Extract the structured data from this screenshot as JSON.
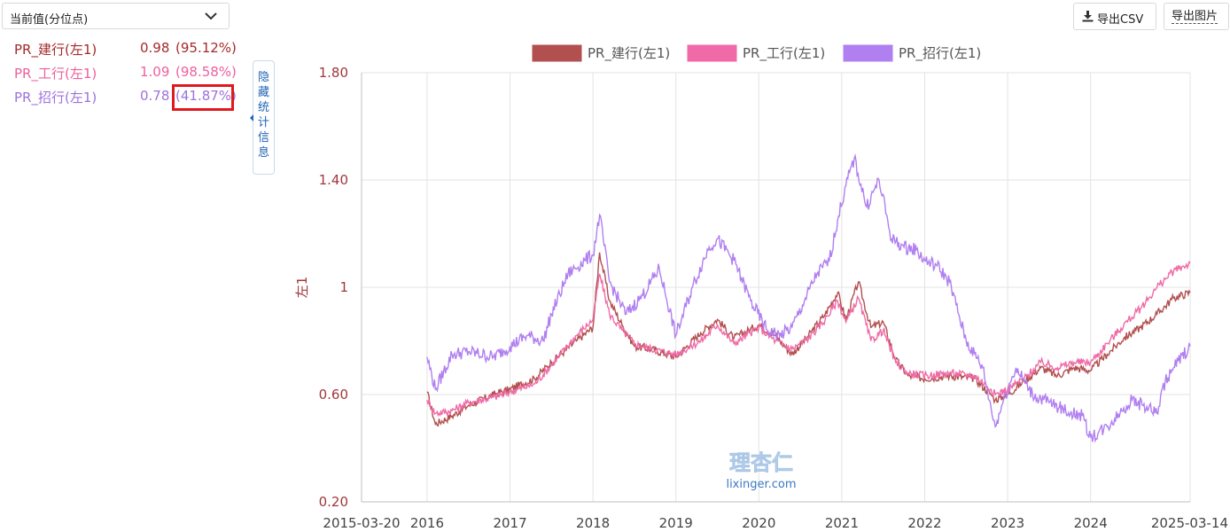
{
  "selector": {
    "label": "当前值(分位点)"
  },
  "stats": [
    {
      "name": "PR_建行(左1)",
      "value": "0.98",
      "pct": "(95.12%)",
      "color": "#a52a2a"
    },
    {
      "name": "PR_工行(左1)",
      "value": "1.09",
      "pct": "(98.58%)",
      "color": "#ee5f9e"
    },
    {
      "name": "PR_招行(左1)",
      "value": "0.78",
      "pct": "(41.87%)",
      "color": "#9d72dc"
    }
  ],
  "toggle": {
    "label": "隐藏统计信息"
  },
  "toolbar": {
    "csv_label": "导出CSV",
    "image_label": "导出图片"
  },
  "watermark": {
    "cn": "理杏仁",
    "url": "lixinger.com"
  },
  "colors": {
    "jianhang": "#b24f4f",
    "gonghang": "#ef6aa6",
    "zhaohang": "#b07ff0",
    "highlight": "#e0191f"
  },
  "chart_data": {
    "type": "line",
    "ylabel": "左1",
    "ylim": [
      0.2,
      1.8
    ],
    "yticks": [
      "1.80",
      "1.40",
      "1",
      "0.60",
      "0.20"
    ],
    "xlim": [
      "2015-03-20",
      "2025-03-14"
    ],
    "xticks": [
      "2015-03-20",
      "2016",
      "2017",
      "2018",
      "2019",
      "2020",
      "2021",
      "2022",
      "2023",
      "2024",
      "2025-03-14"
    ],
    "legend": [
      "PR_建行(左1)",
      "PR_工行(左1)",
      "PR_招行(左1)"
    ],
    "legend_position": "top-center",
    "grid": true,
    "series": [
      {
        "name": "PR_建行(左1)",
        "x": [
          2016.0,
          2016.1,
          2016.3,
          2016.5,
          2016.8,
          2017.0,
          2017.3,
          2017.5,
          2017.8,
          2018.0,
          2018.08,
          2018.2,
          2018.35,
          2018.5,
          2018.7,
          2019.0,
          2019.3,
          2019.5,
          2019.7,
          2020.0,
          2020.2,
          2020.4,
          2020.6,
          2020.8,
          2020.95,
          2021.05,
          2021.2,
          2021.35,
          2021.5,
          2021.65,
          2021.8,
          2022.0,
          2022.3,
          2022.6,
          2022.8,
          2022.85,
          2023.0,
          2023.2,
          2023.4,
          2023.6,
          2023.8,
          2024.0,
          2024.2,
          2024.4,
          2024.6,
          2024.8,
          2025.0,
          2025.2
        ],
        "values": [
          0.61,
          0.49,
          0.52,
          0.56,
          0.6,
          0.62,
          0.66,
          0.72,
          0.8,
          0.85,
          1.13,
          0.95,
          0.86,
          0.78,
          0.77,
          0.74,
          0.83,
          0.88,
          0.81,
          0.86,
          0.82,
          0.75,
          0.82,
          0.9,
          0.98,
          0.88,
          1.02,
          0.85,
          0.87,
          0.73,
          0.67,
          0.66,
          0.67,
          0.66,
          0.6,
          0.58,
          0.6,
          0.65,
          0.7,
          0.67,
          0.7,
          0.69,
          0.75,
          0.81,
          0.85,
          0.9,
          0.96,
          0.98
        ]
      },
      {
        "name": "PR_工行(左1)",
        "x": [
          2016.0,
          2016.1,
          2016.3,
          2016.5,
          2016.8,
          2017.0,
          2017.3,
          2017.5,
          2017.8,
          2018.0,
          2018.08,
          2018.2,
          2018.35,
          2018.5,
          2018.7,
          2019.0,
          2019.3,
          2019.5,
          2019.7,
          2020.0,
          2020.2,
          2020.4,
          2020.6,
          2020.8,
          2020.95,
          2021.05,
          2021.2,
          2021.35,
          2021.5,
          2021.65,
          2021.8,
          2022.0,
          2022.3,
          2022.6,
          2022.8,
          2022.85,
          2023.0,
          2023.2,
          2023.4,
          2023.6,
          2023.8,
          2024.0,
          2024.2,
          2024.4,
          2024.6,
          2024.8,
          2025.0,
          2025.2
        ],
        "values": [
          0.58,
          0.53,
          0.54,
          0.57,
          0.59,
          0.61,
          0.64,
          0.71,
          0.82,
          0.88,
          1.05,
          0.9,
          0.84,
          0.79,
          0.77,
          0.75,
          0.8,
          0.86,
          0.79,
          0.85,
          0.8,
          0.77,
          0.81,
          0.88,
          0.95,
          0.87,
          0.96,
          0.8,
          0.84,
          0.72,
          0.68,
          0.67,
          0.68,
          0.67,
          0.62,
          0.6,
          0.62,
          0.66,
          0.72,
          0.7,
          0.72,
          0.72,
          0.79,
          0.86,
          0.92,
          1.0,
          1.06,
          1.09
        ]
      },
      {
        "name": "PR_招行(左1)",
        "x": [
          2016.0,
          2016.1,
          2016.3,
          2016.5,
          2016.8,
          2017.0,
          2017.2,
          2017.4,
          2017.5,
          2017.7,
          2017.9,
          2018.0,
          2018.08,
          2018.2,
          2018.4,
          2018.6,
          2018.8,
          2019.0,
          2019.2,
          2019.4,
          2019.5,
          2019.7,
          2019.9,
          2020.1,
          2020.25,
          2020.4,
          2020.55,
          2020.7,
          2020.85,
          2020.95,
          2021.05,
          2021.15,
          2021.3,
          2021.45,
          2021.6,
          2021.75,
          2021.9,
          2022.0,
          2022.15,
          2022.3,
          2022.5,
          2022.6,
          2022.7,
          2022.8,
          2022.85,
          2022.95,
          2023.1,
          2023.3,
          2023.5,
          2023.7,
          2023.9,
          2024.0,
          2024.2,
          2024.4,
          2024.5,
          2024.7,
          2024.8,
          2024.9,
          2025.0,
          2025.2
        ],
        "values": [
          0.74,
          0.62,
          0.75,
          0.76,
          0.74,
          0.78,
          0.82,
          0.8,
          0.9,
          1.05,
          1.1,
          1.12,
          1.27,
          1.02,
          0.9,
          0.97,
          1.07,
          0.82,
          1.0,
          1.15,
          1.18,
          1.1,
          0.95,
          0.84,
          0.82,
          0.85,
          0.95,
          1.05,
          1.1,
          1.25,
          1.38,
          1.48,
          1.3,
          1.4,
          1.18,
          1.15,
          1.14,
          1.1,
          1.08,
          1.02,
          0.8,
          0.75,
          0.7,
          0.55,
          0.48,
          0.58,
          0.7,
          0.6,
          0.57,
          0.54,
          0.52,
          0.44,
          0.48,
          0.55,
          0.58,
          0.55,
          0.53,
          0.65,
          0.7,
          0.78
        ]
      }
    ]
  }
}
